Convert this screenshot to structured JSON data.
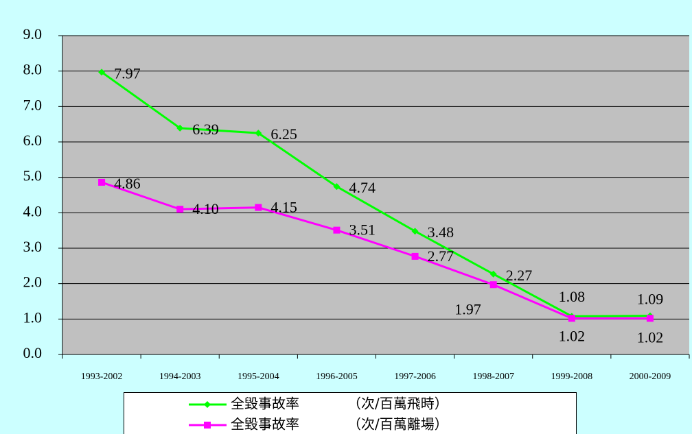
{
  "chart_data": {
    "type": "line",
    "categories": [
      "1993-2002",
      "1994-2003",
      "1995-2004",
      "1996-2005",
      "1997-2006",
      "1998-2007",
      "1999-2008",
      "2000-2009"
    ],
    "series": [
      {
        "name": "全毀事故率　　　　（次/百萬飛時）",
        "color": "#00ff00",
        "marker": "diamond",
        "values": [
          7.97,
          6.39,
          6.25,
          4.74,
          3.48,
          2.27,
          1.08,
          1.09
        ]
      },
      {
        "name": "全毀事故率　　　　（次/百萬離場）",
        "color": "#ff00ff",
        "marker": "square",
        "values": [
          4.86,
          4.1,
          4.15,
          3.51,
          2.77,
          1.97,
          1.02,
          1.02
        ],
        "value_labels": [
          "4.86",
          "4.10",
          "4.15",
          "3.51",
          "2.77",
          "1.97",
          "1.02",
          "1.02"
        ]
      }
    ],
    "ylim": [
      0,
      9
    ],
    "yticks": [
      {
        "value": 0,
        "label": "0.0"
      },
      {
        "value": 1,
        "label": "1.0"
      },
      {
        "value": 2,
        "label": "2.0"
      },
      {
        "value": 3,
        "label": "3.0"
      },
      {
        "value": 4,
        "label": "4.0"
      },
      {
        "value": 5,
        "label": "5.0"
      },
      {
        "value": 6,
        "label": "6.0"
      },
      {
        "value": 7,
        "label": "7.0"
      },
      {
        "value": 8,
        "label": "8.0"
      },
      {
        "value": 9,
        "label": "9.0"
      }
    ],
    "grid": true
  }
}
